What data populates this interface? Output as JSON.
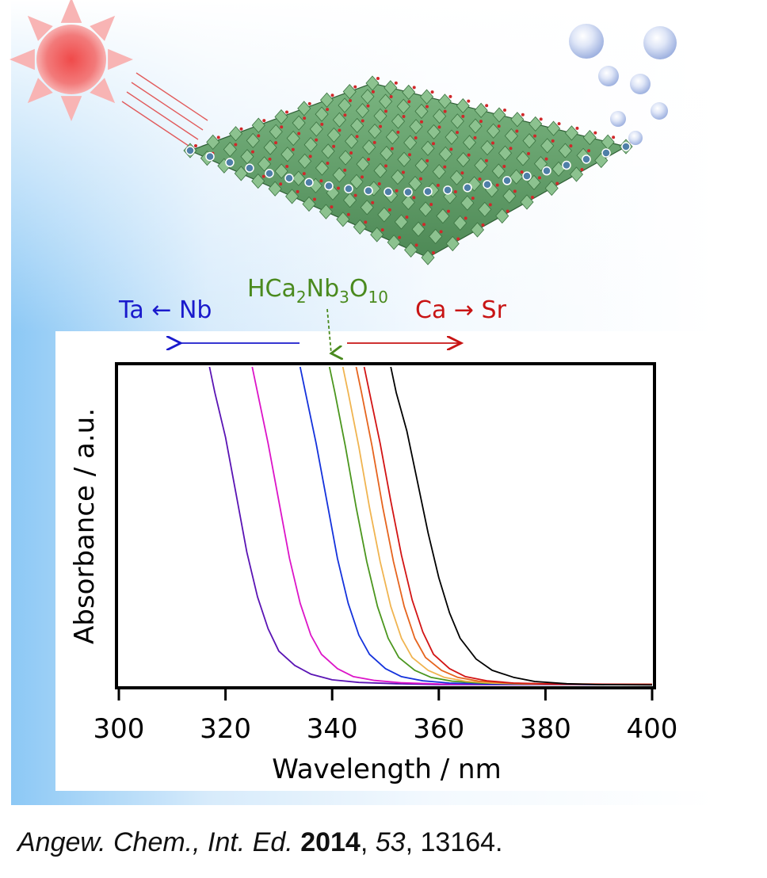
{
  "annotations": {
    "compound_main": "HCa",
    "compound_sub1": "2",
    "compound_mid": "Nb",
    "compound_sub2": "3",
    "compound_o": "O",
    "compound_sub3": "10",
    "left_substitution": "Ta ← Nb",
    "right_substitution": "Ca → Sr"
  },
  "colors": {
    "left_arrow": "#1a1acc",
    "right_arrow": "#c81414",
    "compound": "#4a8a1e",
    "sun": "#f06060"
  },
  "icons": [
    "sun-icon",
    "nanosheet-crystal-illustration",
    "hydrogen-bubbles-icon"
  ],
  "chart_data": {
    "type": "line",
    "xlabel": "Wavelength / nm",
    "ylabel": "Absorbance / a.u.",
    "xlim": [
      300,
      400
    ],
    "ylim": [
      0,
      1
    ],
    "x_ticks": [
      "300",
      "320",
      "340",
      "360",
      "380",
      "400"
    ],
    "grid": false,
    "series": [
      {
        "color": "#5a14b4",
        "x": [
          317,
          318,
          320,
          322,
          324,
          326,
          328,
          330,
          333,
          336,
          340,
          345,
          352,
          360,
          400
        ],
        "y": [
          1.0,
          0.92,
          0.78,
          0.6,
          0.42,
          0.28,
          0.18,
          0.11,
          0.065,
          0.038,
          0.02,
          0.012,
          0.008,
          0.005,
          0.005
        ]
      },
      {
        "color": "#dc14c8",
        "x": [
          325,
          326,
          328,
          330,
          332,
          334,
          336,
          338,
          341,
          344,
          348,
          353,
          360,
          400
        ],
        "y": [
          1.0,
          0.92,
          0.76,
          0.58,
          0.4,
          0.26,
          0.16,
          0.1,
          0.055,
          0.03,
          0.018,
          0.011,
          0.007,
          0.006
        ]
      },
      {
        "color": "#1432dc",
        "x": [
          334,
          335,
          337,
          339,
          341,
          343,
          345,
          347,
          350,
          353,
          357,
          362,
          370,
          400
        ],
        "y": [
          1.0,
          0.92,
          0.76,
          0.58,
          0.4,
          0.26,
          0.16,
          0.1,
          0.055,
          0.03,
          0.017,
          0.01,
          0.007,
          0.006
        ]
      },
      {
        "color": "#4b961e",
        "x": [
          339.5,
          340.5,
          342.5,
          344.5,
          346.5,
          348.5,
          350.5,
          352.5,
          355.5,
          358.5,
          362.5,
          368,
          376,
          400
        ],
        "y": [
          1.0,
          0.92,
          0.75,
          0.56,
          0.39,
          0.25,
          0.15,
          0.09,
          0.05,
          0.028,
          0.016,
          0.01,
          0.007,
          0.006
        ]
      },
      {
        "color": "#f0b450",
        "x": [
          342,
          343,
          345,
          347,
          349,
          351,
          353,
          355,
          358,
          361,
          365,
          370,
          378,
          400
        ],
        "y": [
          1.0,
          0.92,
          0.75,
          0.56,
          0.39,
          0.25,
          0.15,
          0.09,
          0.05,
          0.028,
          0.016,
          0.01,
          0.007,
          0.006
        ]
      },
      {
        "color": "#e6641e",
        "x": [
          344.5,
          345.5,
          347.5,
          349.5,
          351.5,
          353.5,
          355.5,
          357.5,
          360.5,
          363.5,
          367.5,
          373,
          381,
          400
        ],
        "y": [
          1.0,
          0.92,
          0.75,
          0.56,
          0.39,
          0.25,
          0.15,
          0.09,
          0.05,
          0.028,
          0.016,
          0.01,
          0.007,
          0.006
        ]
      },
      {
        "color": "#d21414",
        "x": [
          346,
          347,
          349,
          351,
          353,
          355,
          357,
          359,
          362,
          365,
          369,
          374,
          382,
          400
        ],
        "y": [
          1.0,
          0.92,
          0.76,
          0.58,
          0.41,
          0.27,
          0.17,
          0.1,
          0.055,
          0.03,
          0.017,
          0.01,
          0.007,
          0.006
        ]
      },
      {
        "color": "#000000",
        "x": [
          351,
          352,
          354,
          356,
          358,
          360,
          362,
          364,
          367,
          370,
          374,
          378,
          384,
          390,
          400
        ],
        "y": [
          1.0,
          0.92,
          0.8,
          0.64,
          0.48,
          0.34,
          0.23,
          0.15,
          0.085,
          0.05,
          0.028,
          0.015,
          0.008,
          0.005,
          0.004
        ]
      }
    ]
  },
  "citation": {
    "journal": "Angew. Chem., Int. Ed.",
    "year": "2014",
    "volume": "53",
    "page": ", 13164.",
    "sep1": " ",
    "sep2": ", "
  }
}
